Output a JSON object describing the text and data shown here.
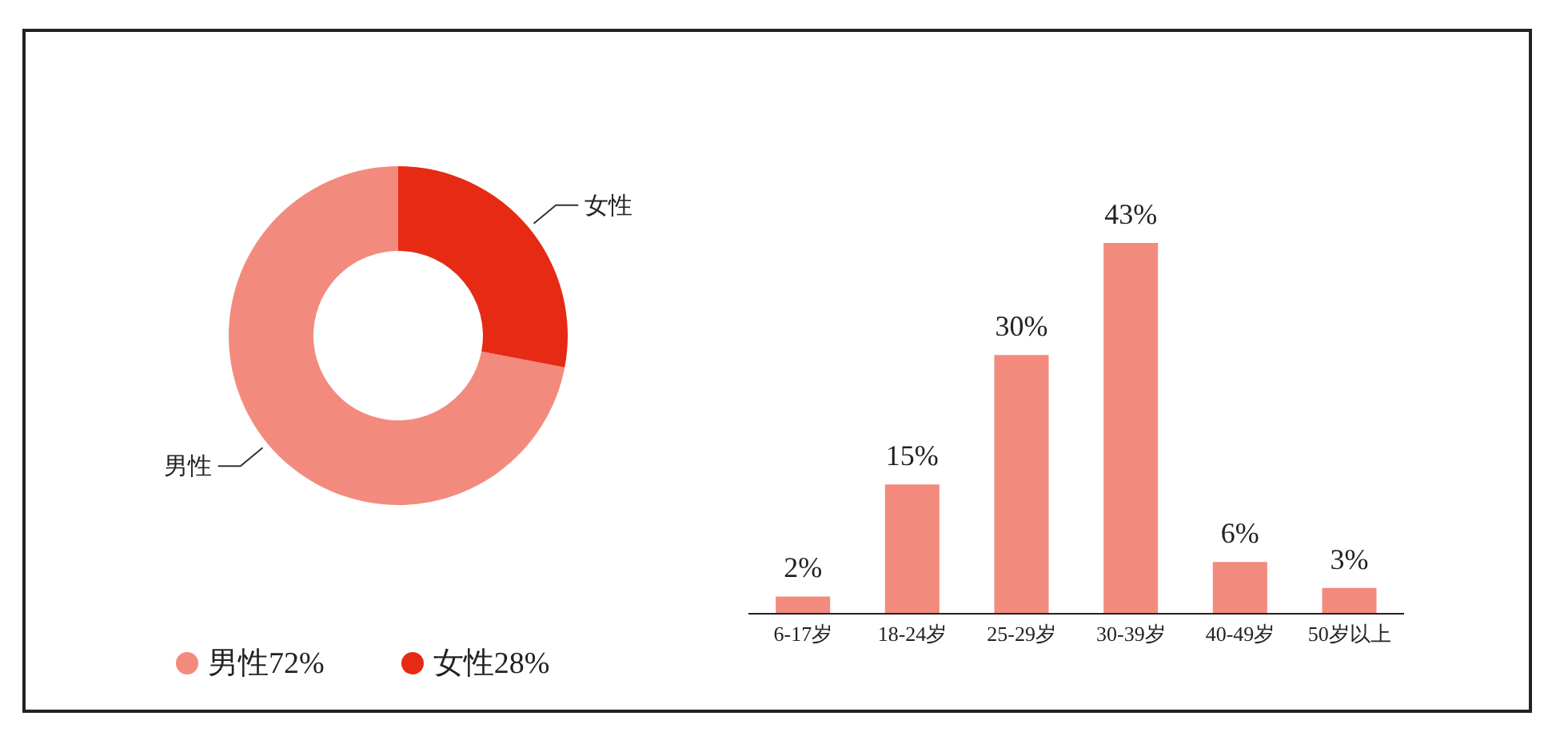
{
  "chart_data": [
    {
      "type": "donut",
      "categories": [
        "男性",
        "女性"
      ],
      "values": [
        72,
        28
      ],
      "colors": [
        "#f28b7d",
        "#e62a14"
      ],
      "value_labels": [
        "72%",
        "28%"
      ],
      "legend": "bottom"
    },
    {
      "type": "bar",
      "categories": [
        "6-17岁",
        "18-24岁",
        "25-29岁",
        "30-39岁",
        "40-49岁",
        "50岁以上"
      ],
      "values": [
        2,
        15,
        30,
        43,
        6,
        3
      ],
      "color": "#f28b7d",
      "value_labels": [
        "2%",
        "15%",
        "30%",
        "43%",
        "6%",
        "3%"
      ]
    }
  ]
}
